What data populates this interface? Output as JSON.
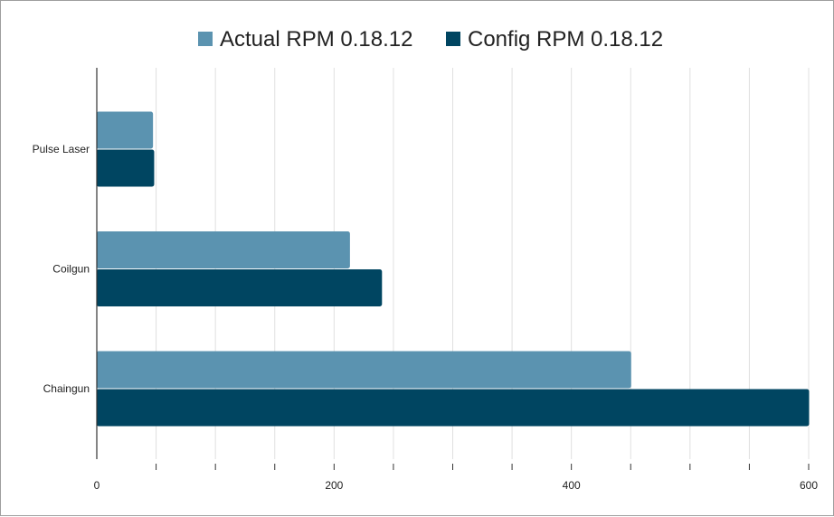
{
  "chart_data": {
    "type": "bar",
    "orientation": "horizontal",
    "categories": [
      "Pulse Laser",
      "Coilgun",
      "Chaingun"
    ],
    "series": [
      {
        "name": "Actual RPM 0.18.12",
        "color": "#5b93b0",
        "values": [
          47,
          213,
          450
        ]
      },
      {
        "name": "Config RPM 0.18.12",
        "color": "#004561",
        "values": [
          48,
          240,
          600
        ]
      }
    ],
    "xlim": [
      0,
      600
    ],
    "x_ticks": [
      0,
      200,
      400,
      600
    ],
    "grid": true,
    "legend_position": "top-center",
    "title": "",
    "xlabel": "",
    "ylabel": ""
  }
}
